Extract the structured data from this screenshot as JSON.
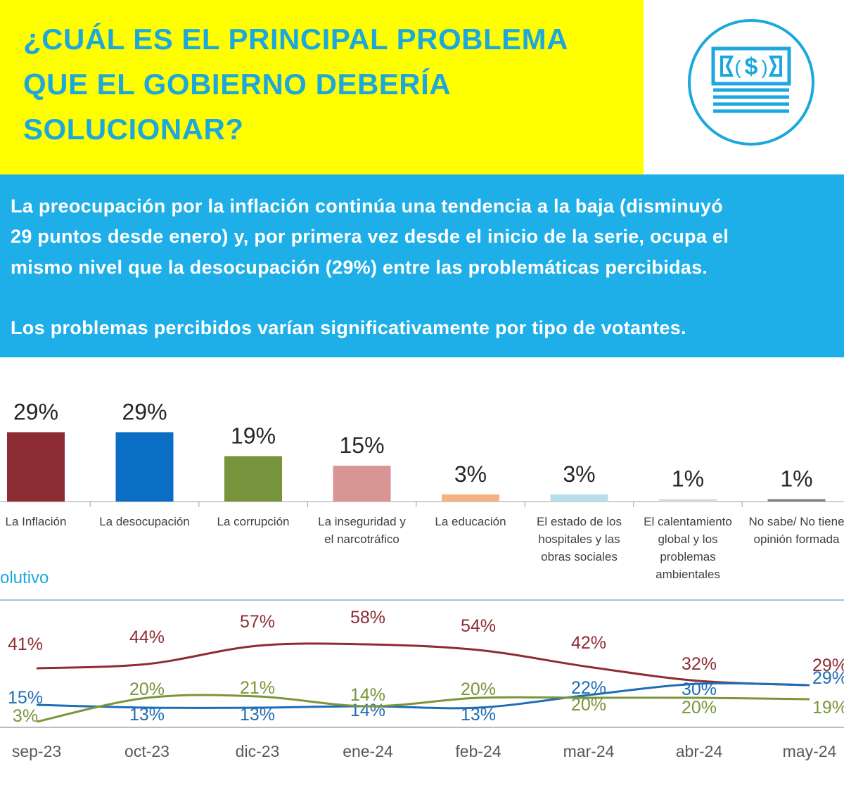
{
  "header": {
    "title_lines": [
      "¿CUÁL ES EL PRINCIPAL PROBLEMA",
      "QUE EL GOBIERNO DEBERÍA",
      "SOLUCIONAR?"
    ],
    "icon": "money-bill-icon"
  },
  "summary": {
    "lines": [
      "La preocupación por la inflación continúa una tendencia a la baja (disminuyó",
      "29 puntos desde enero) y, por primera vez desde el inicio de la serie, ocupa el",
      "mismo nivel que la desocupación (29%) entre las problemáticas percibidas."
    ],
    "note": "Los problemas percibidos varían significativamente por tipo de votantes."
  },
  "section_label": "olutivo",
  "colors": {
    "yellow": "#ffff00",
    "blue_band": "#1eaee8",
    "title": "#1ca8dd",
    "inflacion": "#8e2c33",
    "desocupacion": "#1f6db3",
    "corrupcion": "#7a953a"
  },
  "chart_data": [
    {
      "type": "bar",
      "categories": [
        [
          "La Inflación"
        ],
        [
          "La desocupación"
        ],
        [
          "La corrupción"
        ],
        [
          "La inseguridad y",
          "el narcotráfico"
        ],
        [
          "La educación"
        ],
        [
          "El estado de los",
          "hospitales y las",
          "obras sociales"
        ],
        [
          "El calentamiento",
          "global y los",
          "problemas",
          "ambientales"
        ],
        [
          "No sabe/ No tiene",
          "opinión formada"
        ]
      ],
      "values": [
        29,
        29,
        19,
        15,
        3,
        3,
        1,
        1
      ],
      "labels": [
        "29%",
        "29%",
        "19%",
        "15%",
        "3%",
        "3%",
        "1%",
        "1%"
      ],
      "colors": [
        "#8e2c33",
        "#0a6ec5",
        "#77933c",
        "#d99594",
        "#f4b183",
        "#b7dee8",
        "#d9d9d9",
        "#7f7f7f"
      ],
      "ylim": [
        0,
        30
      ]
    },
    {
      "type": "line",
      "categories": [
        "sep-23",
        "oct-23",
        "dic-23",
        "ene-24",
        "feb-24",
        "mar-24",
        "abr-24",
        "may-24"
      ],
      "series": [
        {
          "name": "La Inflación",
          "color": "#8e2c33",
          "values": [
            41,
            44,
            57,
            58,
            54,
            42,
            32,
            29
          ],
          "labels": [
            "41%",
            "44%",
            "57%",
            "58%",
            "54%",
            "42%",
            "32%",
            "29%"
          ]
        },
        {
          "name": "La desocupación",
          "color": "#1f6db3",
          "values": [
            15,
            13,
            13,
            14,
            13,
            22,
            30,
            29
          ],
          "labels": [
            "15%",
            "13%",
            "13%",
            "14%",
            "13%",
            "22%",
            "30%",
            "29%"
          ]
        },
        {
          "name": "La corrupción",
          "color": "#7a953a",
          "values": [
            3,
            20,
            21,
            14,
            20,
            20,
            20,
            19
          ],
          "labels": [
            "3%",
            "20%",
            "21%",
            "14%",
            "20%",
            "20%",
            "20%",
            "19%"
          ]
        }
      ]
    }
  ]
}
